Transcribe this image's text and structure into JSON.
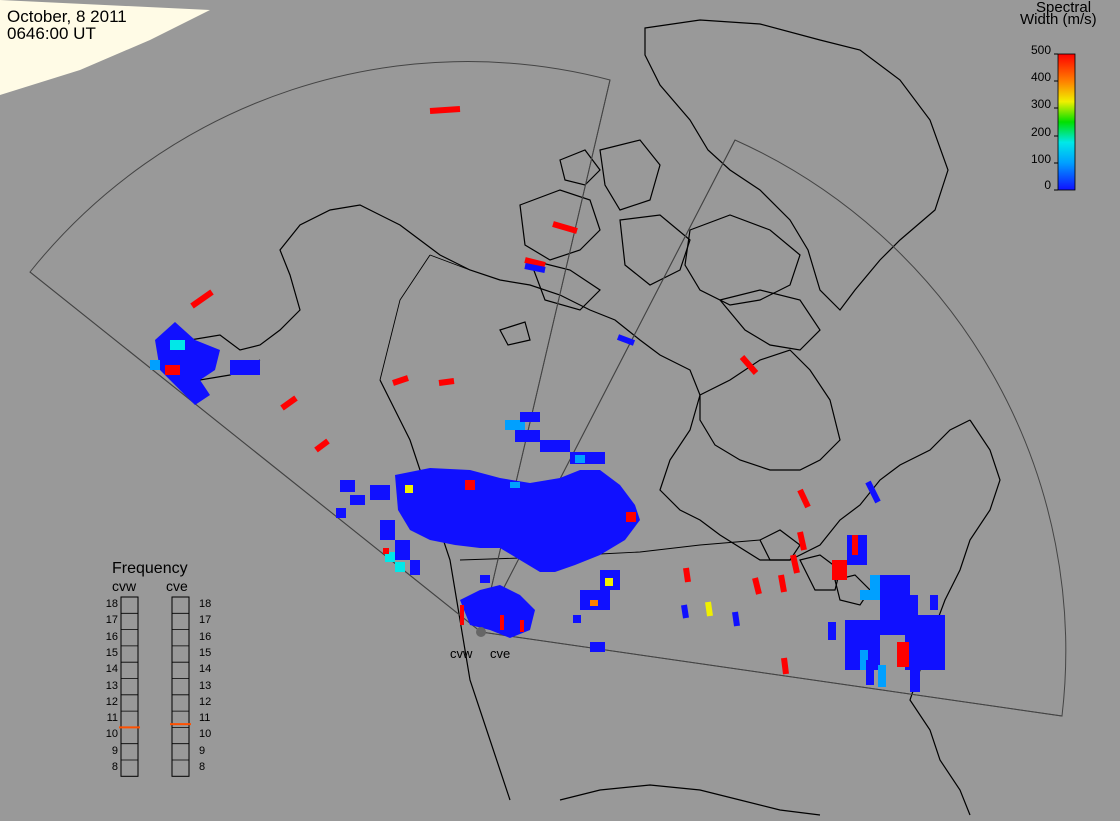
{
  "header": {
    "date": "October, 8 2011",
    "time": "0646:00 UT"
  },
  "colorbar": {
    "title_line1": "Spectral",
    "title_line2": "Width (m/s)",
    "ticks": [
      "500",
      "400",
      "300",
      "200",
      "100",
      "0"
    ],
    "range": [
      0,
      500
    ],
    "colors": [
      "#1010ff",
      "#00a0ff",
      "#00e8e8",
      "#00e000",
      "#f0f000",
      "#ff8000",
      "#ff0000"
    ]
  },
  "radars": {
    "west": "cvw",
    "east": "cve"
  },
  "frequency": {
    "title": "Frequency",
    "west_label": "cvw",
    "east_label": "cve",
    "scale": [
      "18",
      "17",
      "16",
      "15",
      "14",
      "13",
      "12",
      "11",
      "10",
      "9",
      "8"
    ],
    "west_value": 10.5,
    "east_value": 10.7,
    "marker_color": "#ff5000"
  },
  "colors": {
    "background": "#999999",
    "land_outline": "#000000",
    "fov_outline": "#444444",
    "night_region": "#fffbe8",
    "scatter_low": "#1010ff",
    "scatter_high": "#ff0000"
  }
}
